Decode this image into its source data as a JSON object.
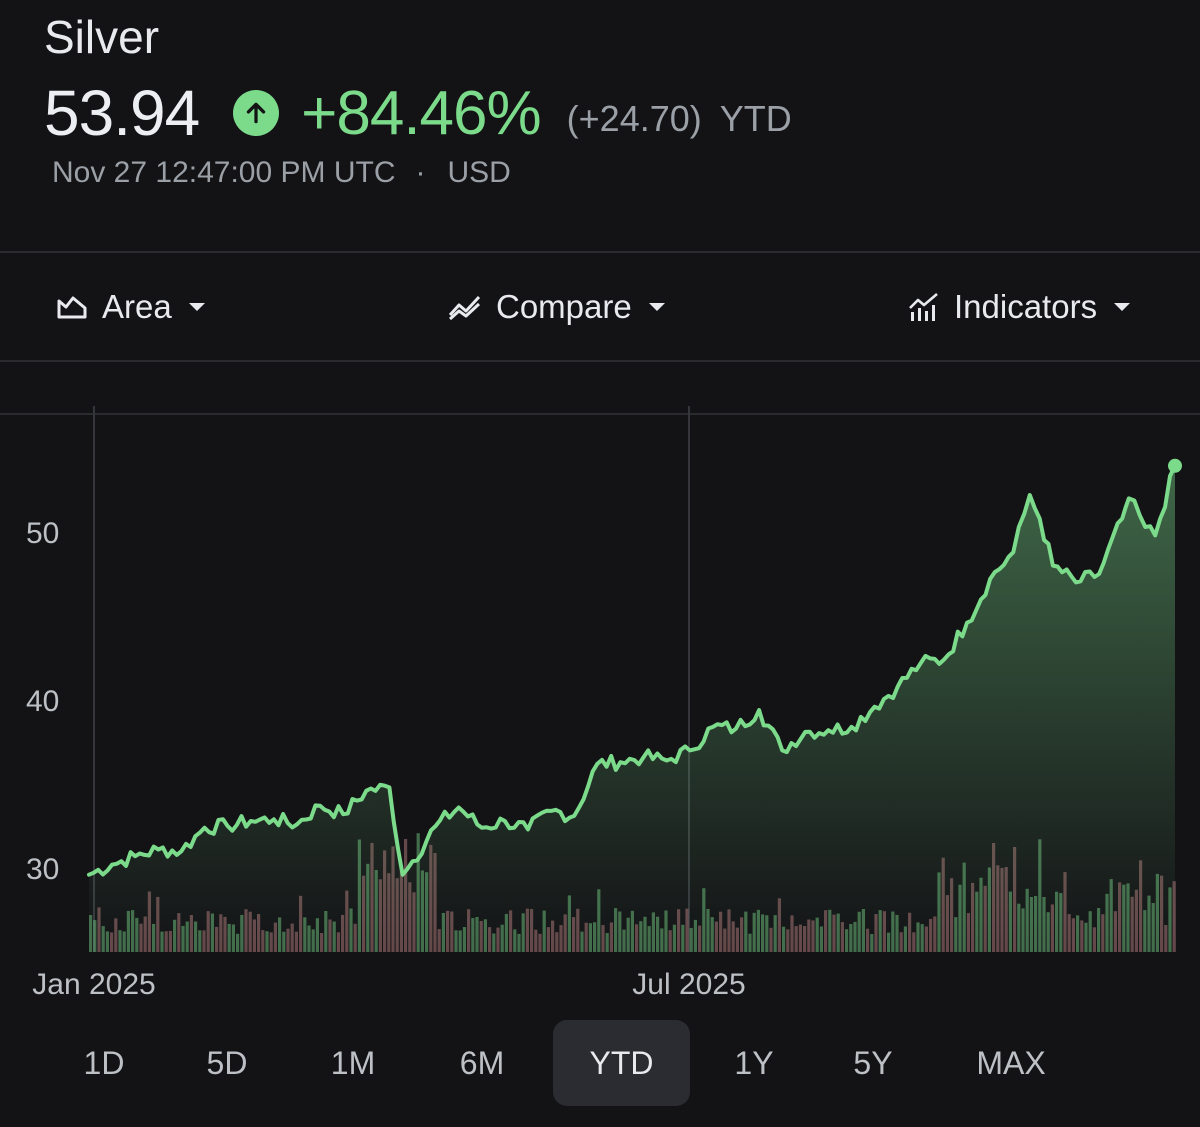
{
  "header": {
    "title": "Silver",
    "price": "53.94",
    "change_pct": "+84.46%",
    "change_abs": "(+24.70)",
    "period": "YTD",
    "timestamp": "Nov 27 12:47:00 PM UTC",
    "separator": "·",
    "currency": "USD"
  },
  "toolbar": {
    "area_label": "Area",
    "compare_label": "Compare",
    "indicators_label": "Indicators"
  },
  "ranges": [
    "1D",
    "5D",
    "1M",
    "6M",
    "YTD",
    "1Y",
    "5Y",
    "MAX"
  ],
  "active_range": "YTD",
  "colors": {
    "up": "#7cdb8b",
    "down": "#c98a8a",
    "background": "#131316",
    "active_range_bg": "#2a2c31"
  },
  "chart_data": {
    "type": "area",
    "title": "",
    "xlabel": "",
    "ylabel": "",
    "x_tick_labels": [
      "Jan 2025",
      "Jul 2025"
    ],
    "y_tick_labels": [
      "30",
      "40",
      "50"
    ],
    "ylim": [
      26,
      57
    ],
    "grid": false,
    "series": [
      {
        "name": "",
        "points": [
          [
            "2025-01-02",
            29.6
          ],
          [
            "2025-01-09",
            30.2
          ],
          [
            "2025-01-16",
            30.7
          ],
          [
            "2025-01-23",
            31.1
          ],
          [
            "2025-01-30",
            31.0
          ],
          [
            "2025-02-06",
            32.4
          ],
          [
            "2025-02-13",
            32.5
          ],
          [
            "2025-02-20",
            32.8
          ],
          [
            "2025-02-27",
            32.9
          ],
          [
            "2025-03-06",
            32.6
          ],
          [
            "2025-03-13",
            33.7
          ],
          [
            "2025-03-20",
            33.2
          ],
          [
            "2025-03-27",
            34.6
          ],
          [
            "2025-04-03",
            34.8
          ],
          [
            "2025-04-07",
            29.6
          ],
          [
            "2025-04-10",
            30.4
          ],
          [
            "2025-04-17",
            32.5
          ],
          [
            "2025-04-24",
            33.6
          ],
          [
            "2025-05-01",
            32.4
          ],
          [
            "2025-05-08",
            32.8
          ],
          [
            "2025-05-15",
            32.3
          ],
          [
            "2025-05-22",
            33.4
          ],
          [
            "2025-05-29",
            33.1
          ],
          [
            "2025-06-05",
            36.2
          ],
          [
            "2025-06-12",
            36.3
          ],
          [
            "2025-06-19",
            36.6
          ],
          [
            "2025-06-26",
            36.4
          ],
          [
            "2025-07-03",
            37.0
          ],
          [
            "2025-07-10",
            38.4
          ],
          [
            "2025-07-17",
            38.3
          ],
          [
            "2025-07-24",
            39.4
          ],
          [
            "2025-07-31",
            37.0
          ],
          [
            "2025-08-07",
            38.1
          ],
          [
            "2025-08-14",
            38.2
          ],
          [
            "2025-08-21",
            38.4
          ],
          [
            "2025-08-28",
            39.6
          ],
          [
            "2025-09-04",
            40.8
          ],
          [
            "2025-09-11",
            42.2
          ],
          [
            "2025-09-18",
            42.4
          ],
          [
            "2025-09-25",
            44.6
          ],
          [
            "2025-10-02",
            47.2
          ],
          [
            "2025-10-09",
            48.8
          ],
          [
            "2025-10-14",
            52.2
          ],
          [
            "2025-10-17",
            50.8
          ],
          [
            "2025-10-21",
            48.0
          ],
          [
            "2025-10-28",
            47.0
          ],
          [
            "2025-11-04",
            47.5
          ],
          [
            "2025-11-11",
            50.8
          ],
          [
            "2025-11-13",
            52.0
          ],
          [
            "2025-11-18",
            50.3
          ],
          [
            "2025-11-21",
            49.8
          ],
          [
            "2025-11-27",
            53.94
          ]
        ]
      }
    ],
    "volume_colors": [
      "up",
      "down"
    ]
  }
}
